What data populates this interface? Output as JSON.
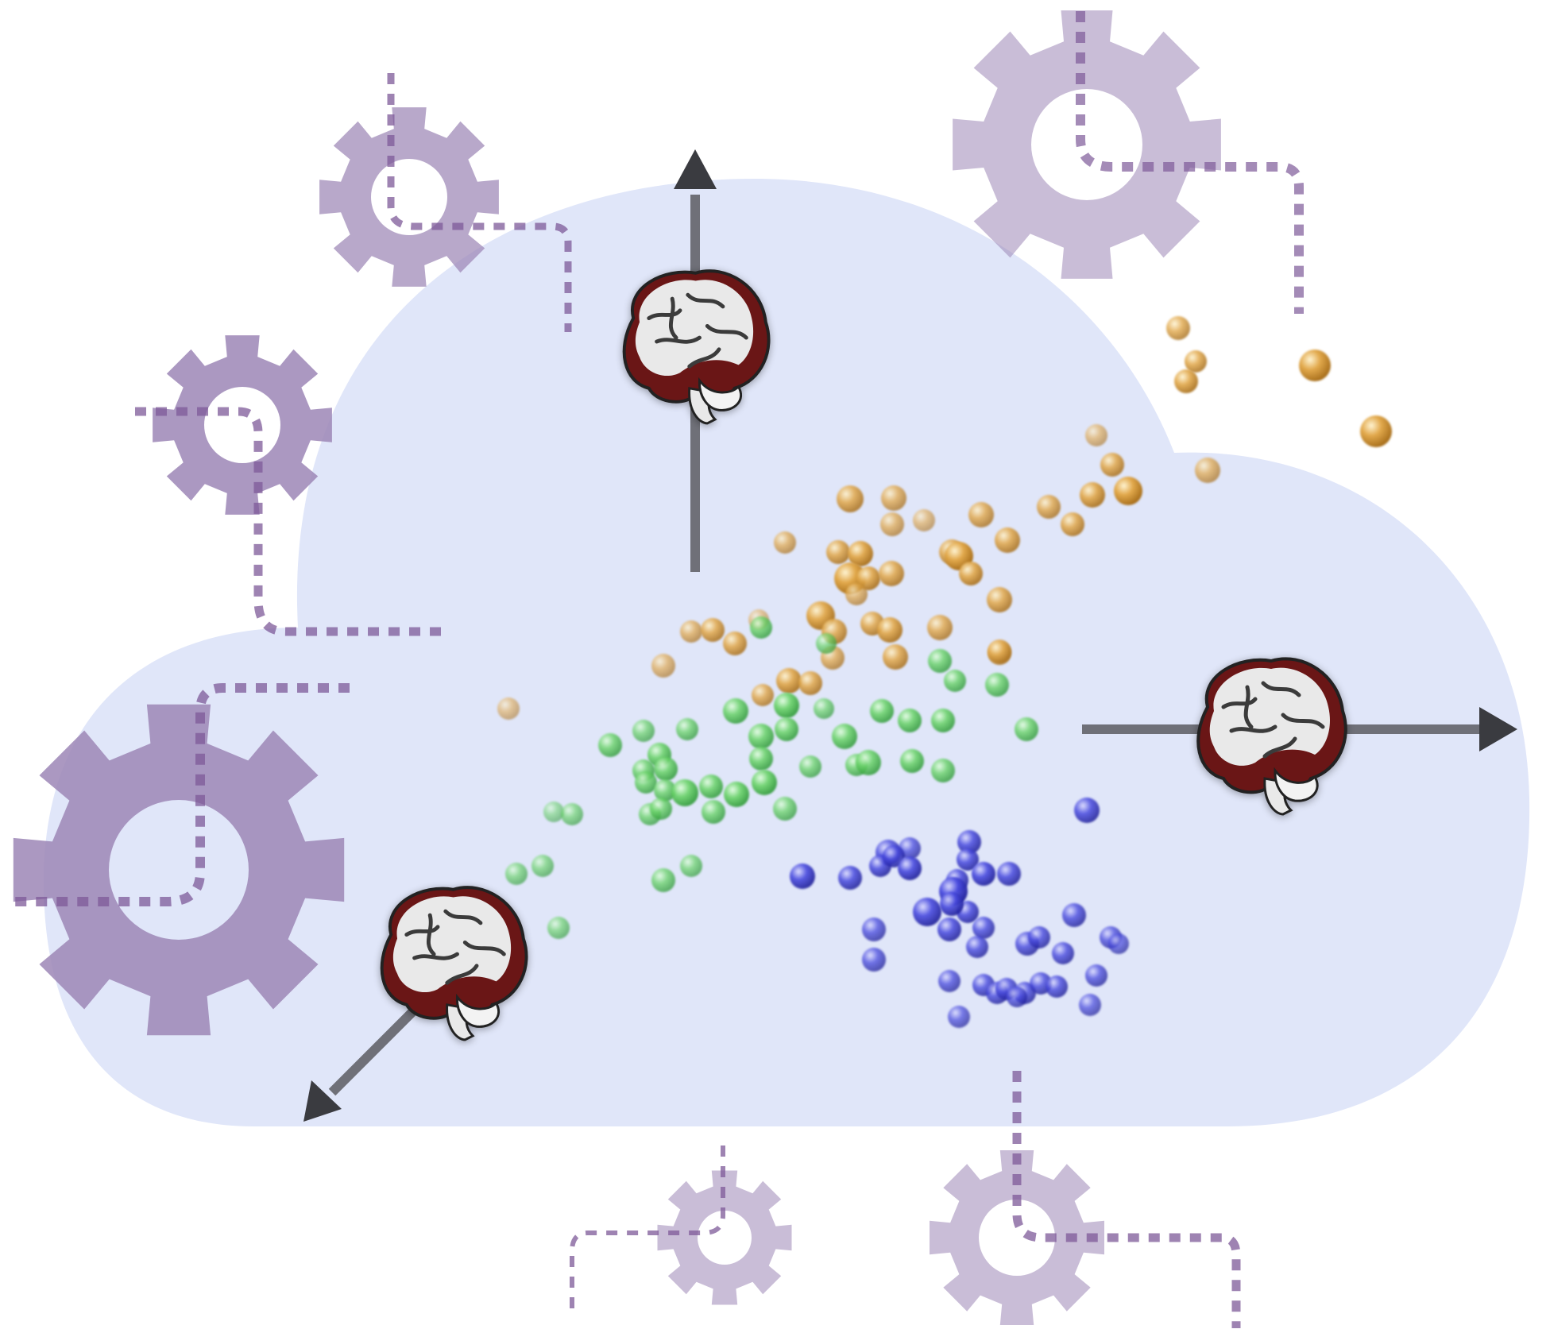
{
  "colors": {
    "background": "#ffffff",
    "cloud": "#e0e6f9",
    "gear": "#9c86b6",
    "gear_route": "#7e5a98",
    "axis": "#6f7078",
    "arrow_head": "#3a3b40",
    "brain_dark": "#6a1212",
    "brain_light": "#e9e9e9",
    "cluster_gold": "#e0a646",
    "cluster_green": "#69d06b",
    "cluster_blue": "#4446d8"
  },
  "icons": {
    "cloud": "cloud-icon",
    "gear": "gear-icon",
    "brain": "brain-icon",
    "arrow": "arrow-icon"
  },
  "clusters": [
    {
      "name": "gold-cluster",
      "color": "#e0a646"
    },
    {
      "name": "green-cluster",
      "color": "#69d06b"
    },
    {
      "name": "blue-cluster",
      "color": "#4446d8"
    }
  ]
}
